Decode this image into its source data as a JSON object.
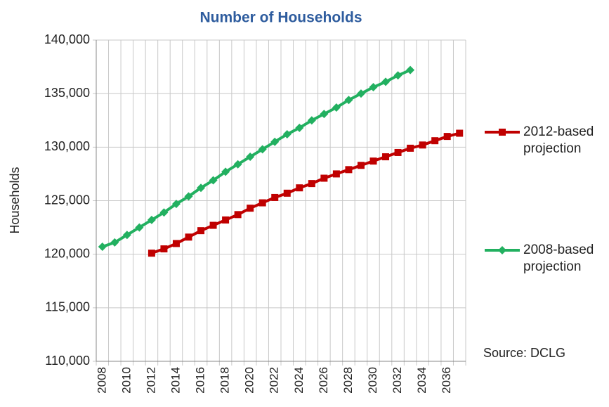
{
  "chart_data": {
    "type": "line",
    "title": "Number of Households",
    "y_label": "Households",
    "annotation": "Source: DCLG",
    "categories": [
      "2008",
      null,
      "2010",
      null,
      "2012",
      null,
      "2014",
      null,
      "2016",
      null,
      "2018",
      null,
      "2020",
      null,
      "2022",
      null,
      "2024",
      null,
      "2026",
      null,
      "2028",
      null,
      "2030",
      null,
      "2032",
      null,
      "2034",
      null,
      "2036",
      null
    ],
    "series": [
      {
        "name": "2012-based projection",
        "color": "#c00000",
        "marker": "square",
        "values": [
          null,
          null,
          null,
          null,
          120100,
          120500,
          121000,
          121600,
          122200,
          122700,
          123200,
          123700,
          124300,
          124800,
          125300,
          125700,
          126200,
          126600,
          127100,
          127500,
          127900,
          128300,
          128700,
          129100,
          129500,
          129900,
          130200,
          130600,
          131000,
          131300
        ]
      },
      {
        "name": "2008-based projection",
        "color": "#22b060",
        "marker": "diamond",
        "values": [
          120700,
          121100,
          121800,
          122500,
          123200,
          123900,
          124700,
          125400,
          126200,
          126900,
          127700,
          128400,
          129100,
          129800,
          130500,
          131200,
          131800,
          132500,
          133100,
          133700,
          134400,
          135000,
          135600,
          136100,
          136700,
          137200,
          null,
          null,
          null,
          null
        ]
      }
    ],
    "ylim": [
      110000,
      140000
    ],
    "yticks": [
      {
        "value": 110000,
        "label": "110,000"
      },
      {
        "value": 115000,
        "label": "115,000"
      },
      {
        "value": 120000,
        "label": "120,000"
      },
      {
        "value": 125000,
        "label": "125,000"
      },
      {
        "value": 130000,
        "label": "130,000"
      },
      {
        "value": 135000,
        "label": "135,000"
      },
      {
        "value": 140000,
        "label": "140,000"
      }
    ],
    "grid": true
  }
}
